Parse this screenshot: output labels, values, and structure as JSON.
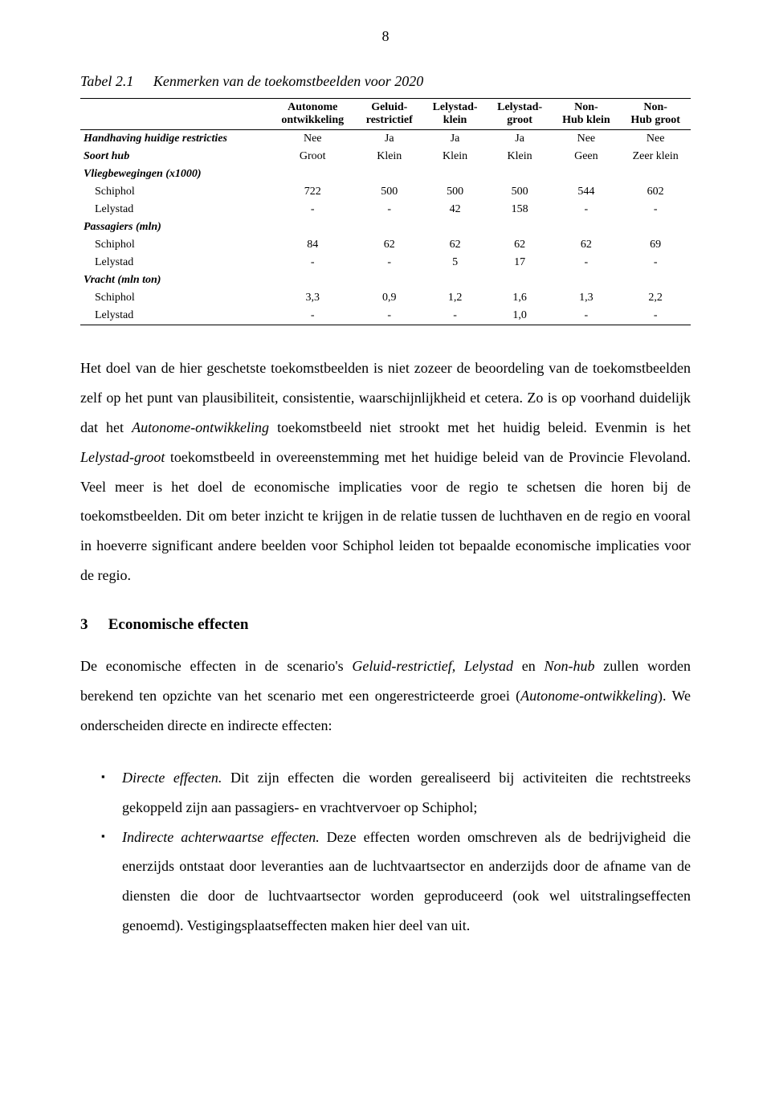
{
  "page_number": "8",
  "table": {
    "label": "Tabel 2.1",
    "title": "Kenmerken van de toekomstbeelden voor 2020",
    "columns": [
      "",
      "Autonome\nontwikkeling",
      "Geluid-\nrestrictief",
      "Lelystad-\nklein",
      "Lelystad-\ngroot",
      "Non-\nHub klein",
      "Non-\nHub groot"
    ],
    "rows": [
      {
        "label": "Handhaving huidige restricties",
        "cells": [
          "Nee",
          "Ja",
          "Ja",
          "Ja",
          "Nee",
          "Nee"
        ],
        "style": "bold"
      },
      {
        "label": "Soort hub",
        "cells": [
          "Groot",
          "Klein",
          "Klein",
          "Klein",
          "Geen",
          "Zeer klein"
        ],
        "style": "bold"
      },
      {
        "label": "Vliegbewegingen (x1000)",
        "cells": [
          "",
          "",
          "",
          "",
          "",
          ""
        ],
        "style": "bold"
      },
      {
        "label": "Schiphol",
        "cells": [
          "722",
          "500",
          "500",
          "500",
          "544",
          "602"
        ],
        "style": "indent"
      },
      {
        "label": "Lelystad",
        "cells": [
          "-",
          "-",
          "42",
          "158",
          "-",
          "-"
        ],
        "style": "indent"
      },
      {
        "label": "Passagiers (mln)",
        "cells": [
          "",
          "",
          "",
          "",
          "",
          ""
        ],
        "style": "bold"
      },
      {
        "label": "Schiphol",
        "cells": [
          "84",
          "62",
          "62",
          "62",
          "62",
          "69"
        ],
        "style": "indent"
      },
      {
        "label": "Lelystad",
        "cells": [
          "-",
          "-",
          "5",
          "17",
          "-",
          "-"
        ],
        "style": "indent"
      },
      {
        "label": "Vracht (mln ton)",
        "cells": [
          "",
          "",
          "",
          "",
          "",
          ""
        ],
        "style": "bold"
      },
      {
        "label": "Schiphol",
        "cells": [
          "3,3",
          "0,9",
          "1,2",
          "1,6",
          "1,3",
          "2,2"
        ],
        "style": "indent"
      },
      {
        "label": "Lelystad",
        "cells": [
          "-",
          "-",
          "-",
          "1,0",
          "-",
          "-"
        ],
        "style": "indent last"
      }
    ]
  },
  "para1_parts": [
    {
      "t": "Het doel van de hier geschetste toekomstbeelden is niet zozeer de beoordeling van de toekomstbeelden zelf op het punt van plausibiliteit, consistentie, waarschijnlijkheid et cetera. Zo is op voorhand duidelijk dat het "
    },
    {
      "t": "Autonome-ontwikkeling",
      "it": true
    },
    {
      "t": " toekomstbeeld niet strookt met het huidig beleid. Evenmin is het "
    },
    {
      "t": "Lelystad-groot",
      "it": true
    },
    {
      "t": " toekomstbeeld in overeenstemming met het huidige beleid van de Provincie Flevoland. Veel meer is het doel de economische implicaties voor de regio te schetsen die horen bij de toekomstbeelden. Dit om beter inzicht te krijgen in de relatie tussen de luchthaven en de regio en vooral in hoeverre significant andere beelden voor Schiphol leiden tot bepaalde economische implicaties voor de regio."
    }
  ],
  "section": {
    "num": "3",
    "title": "Economische effecten"
  },
  "para2_parts": [
    {
      "t": "De economische effecten in de scenario's "
    },
    {
      "t": "Geluid-restrictief, Lelystad",
      "it": true
    },
    {
      "t": " en "
    },
    {
      "t": "Non-hub",
      "it": true
    },
    {
      "t": " zullen worden berekend ten opzichte van het scenario met een ongerestricteerde groei ("
    },
    {
      "t": "Autonome-ontwikkeling",
      "it": true
    },
    {
      "t": "). We onderscheiden directe en indirecte effecten:"
    }
  ],
  "bullets": [
    {
      "lead": "Directe effecten.",
      "rest": " Dit zijn effecten die worden gerealiseerd bij activiteiten die rechtstreeks gekoppeld zijn aan passagiers- en vrachtvervoer op Schiphol;"
    },
    {
      "lead": "Indirecte achterwaartse effecten.",
      "rest": " Deze effecten worden omschreven als de bedrijvigheid die enerzijds ontstaat door leveranties aan de luchtvaartsector en anderzijds door de afname van de diensten die door de luchtvaartsector worden geproduceerd (ook wel uitstralingseffecten genoemd). Vestigingsplaatseffecten maken hier deel van uit."
    }
  ]
}
